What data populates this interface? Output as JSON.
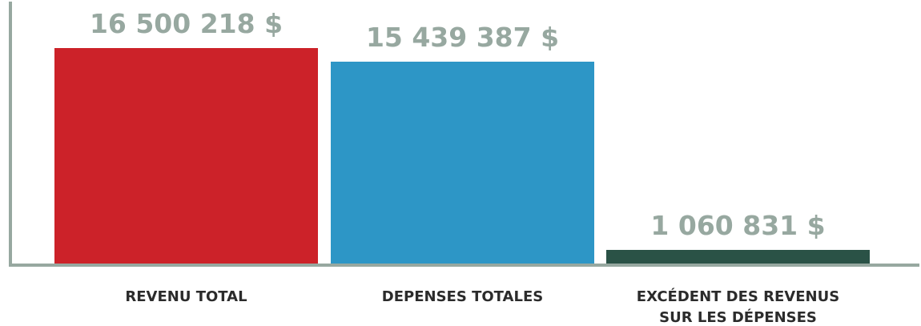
{
  "chart_data": {
    "type": "bar",
    "categories": [
      [
        "REVENU TOTAL"
      ],
      [
        "DEPENSES TOTALES"
      ],
      [
        "EXCÉDENT DES REVENUS",
        "SUR LES DÉPENSES"
      ]
    ],
    "values": [
      16500218,
      15439387,
      1060831
    ],
    "value_labels": [
      "16 500 218 $",
      "15 439 387 $",
      "1 060 831 $"
    ],
    "title": "",
    "xlabel": "",
    "ylabel": "",
    "ylim": [
      0,
      16500218
    ],
    "grid": false,
    "legend": "none"
  },
  "colors": {
    "bars": [
      "#cc2229",
      "#2d96c6",
      "#2a5246"
    ],
    "axis": "#97a8a0",
    "value_text": "#97a8a0",
    "category_text": "#2b2b2b"
  }
}
